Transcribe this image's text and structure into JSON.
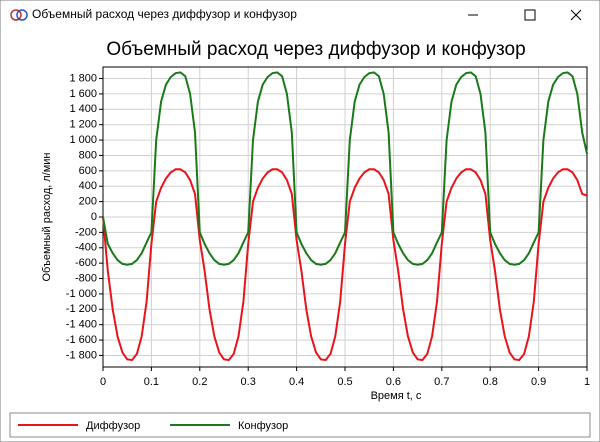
{
  "window": {
    "title": "Объемный расход через диффузор и конфузор"
  },
  "chart_data": {
    "type": "line",
    "title": "Объемный расход через диффузор и конфузор",
    "xlabel": "Время t, с",
    "ylabel": "Объемный расход, л/мин",
    "x": [
      0,
      0.01,
      0.02,
      0.03,
      0.04,
      0.05,
      0.06,
      0.07,
      0.08,
      0.09,
      0.1,
      0.11,
      0.12,
      0.13,
      0.14,
      0.15,
      0.16,
      0.17,
      0.18,
      0.19,
      0.2,
      0.21,
      0.22,
      0.23,
      0.24,
      0.25,
      0.26,
      0.27,
      0.28,
      0.29,
      0.3,
      0.31,
      0.32,
      0.33,
      0.34,
      0.35,
      0.36,
      0.37,
      0.38,
      0.39,
      0.4,
      0.41,
      0.42,
      0.43,
      0.44,
      0.45,
      0.46,
      0.47,
      0.48,
      0.49,
      0.5,
      0.51,
      0.52,
      0.53,
      0.54,
      0.55,
      0.56,
      0.57,
      0.58,
      0.59,
      0.6,
      0.61,
      0.62,
      0.63,
      0.64,
      0.65,
      0.66,
      0.67,
      0.68,
      0.69,
      0.7,
      0.71,
      0.72,
      0.73,
      0.74,
      0.75,
      0.76,
      0.77,
      0.78,
      0.79,
      0.8,
      0.81,
      0.82,
      0.83,
      0.84,
      0.85,
      0.86,
      0.87,
      0.88,
      0.89,
      0.9,
      0.91,
      0.92,
      0.93,
      0.94,
      0.95,
      0.96,
      0.97,
      0.98,
      0.99,
      1
    ],
    "series": [
      {
        "name": "Диффузор",
        "color": "#e8141c",
        "values": [
          0,
          -700,
          -1200,
          -1550,
          -1760,
          -1850,
          -1860,
          -1780,
          -1550,
          -1100,
          -350,
          200,
          380,
          500,
          580,
          620,
          620,
          580,
          480,
          300,
          -300,
          -700,
          -1200,
          -1550,
          -1760,
          -1850,
          -1860,
          -1780,
          -1550,
          -1100,
          -350,
          200,
          380,
          500,
          580,
          620,
          620,
          580,
          480,
          300,
          -300,
          -700,
          -1200,
          -1550,
          -1760,
          -1850,
          -1860,
          -1780,
          -1550,
          -1100,
          -350,
          200,
          380,
          500,
          580,
          620,
          620,
          580,
          480,
          300,
          -300,
          -700,
          -1200,
          -1550,
          -1760,
          -1850,
          -1860,
          -1780,
          -1550,
          -1100,
          -350,
          200,
          380,
          500,
          580,
          620,
          620,
          580,
          480,
          300,
          -300,
          -700,
          -1200,
          -1550,
          -1760,
          -1850,
          -1860,
          -1780,
          -1550,
          -1100,
          -350,
          200,
          380,
          500,
          580,
          620,
          620,
          580,
          480,
          300,
          280
        ]
      },
      {
        "name": "Конфузор",
        "color": "#1a7a1a",
        "values": [
          0,
          -350,
          -470,
          -560,
          -610,
          -620,
          -610,
          -560,
          -470,
          -330,
          -200,
          1000,
          1500,
          1720,
          1820,
          1870,
          1880,
          1830,
          1600,
          1100,
          -200,
          -350,
          -470,
          -560,
          -610,
          -620,
          -610,
          -560,
          -470,
          -330,
          -200,
          1000,
          1500,
          1720,
          1820,
          1870,
          1880,
          1830,
          1600,
          1100,
          -200,
          -350,
          -470,
          -560,
          -610,
          -620,
          -610,
          -560,
          -470,
          -330,
          -200,
          1000,
          1500,
          1720,
          1820,
          1870,
          1880,
          1830,
          1600,
          1100,
          -200,
          -350,
          -470,
          -560,
          -610,
          -620,
          -610,
          -560,
          -470,
          -330,
          -200,
          1000,
          1500,
          1720,
          1820,
          1870,
          1880,
          1830,
          1600,
          1100,
          -200,
          -350,
          -470,
          -560,
          -610,
          -620,
          -610,
          -560,
          -470,
          -330,
          -200,
          1000,
          1500,
          1720,
          1820,
          1870,
          1880,
          1830,
          1600,
          1100,
          820
        ]
      }
    ],
    "xlim": [
      0,
      1
    ],
    "xticks": [
      0,
      0.1,
      0.2,
      0.3,
      0.4,
      0.5,
      0.6,
      0.7,
      0.8,
      0.9,
      1
    ],
    "ylim": [
      -1950,
      1950
    ],
    "yticks": [
      {
        "value": 1800,
        "label": "1 800"
      },
      {
        "value": 1600,
        "label": "1 600"
      },
      {
        "value": 1400,
        "label": "1 400"
      },
      {
        "value": 1200,
        "label": "1 200"
      },
      {
        "value": 1000,
        "label": "1 000"
      },
      800,
      600,
      400,
      200,
      0,
      -200,
      -400,
      -600,
      -800,
      {
        "value": -1000,
        "label": "-1 000"
      },
      {
        "value": -1200,
        "label": "-1 200"
      },
      {
        "value": -1400,
        "label": "-1 400"
      },
      {
        "value": -1600,
        "label": "-1 600"
      },
      {
        "value": -1800,
        "label": "-1 800"
      }
    ],
    "grid": true,
    "legend": "bottom"
  }
}
